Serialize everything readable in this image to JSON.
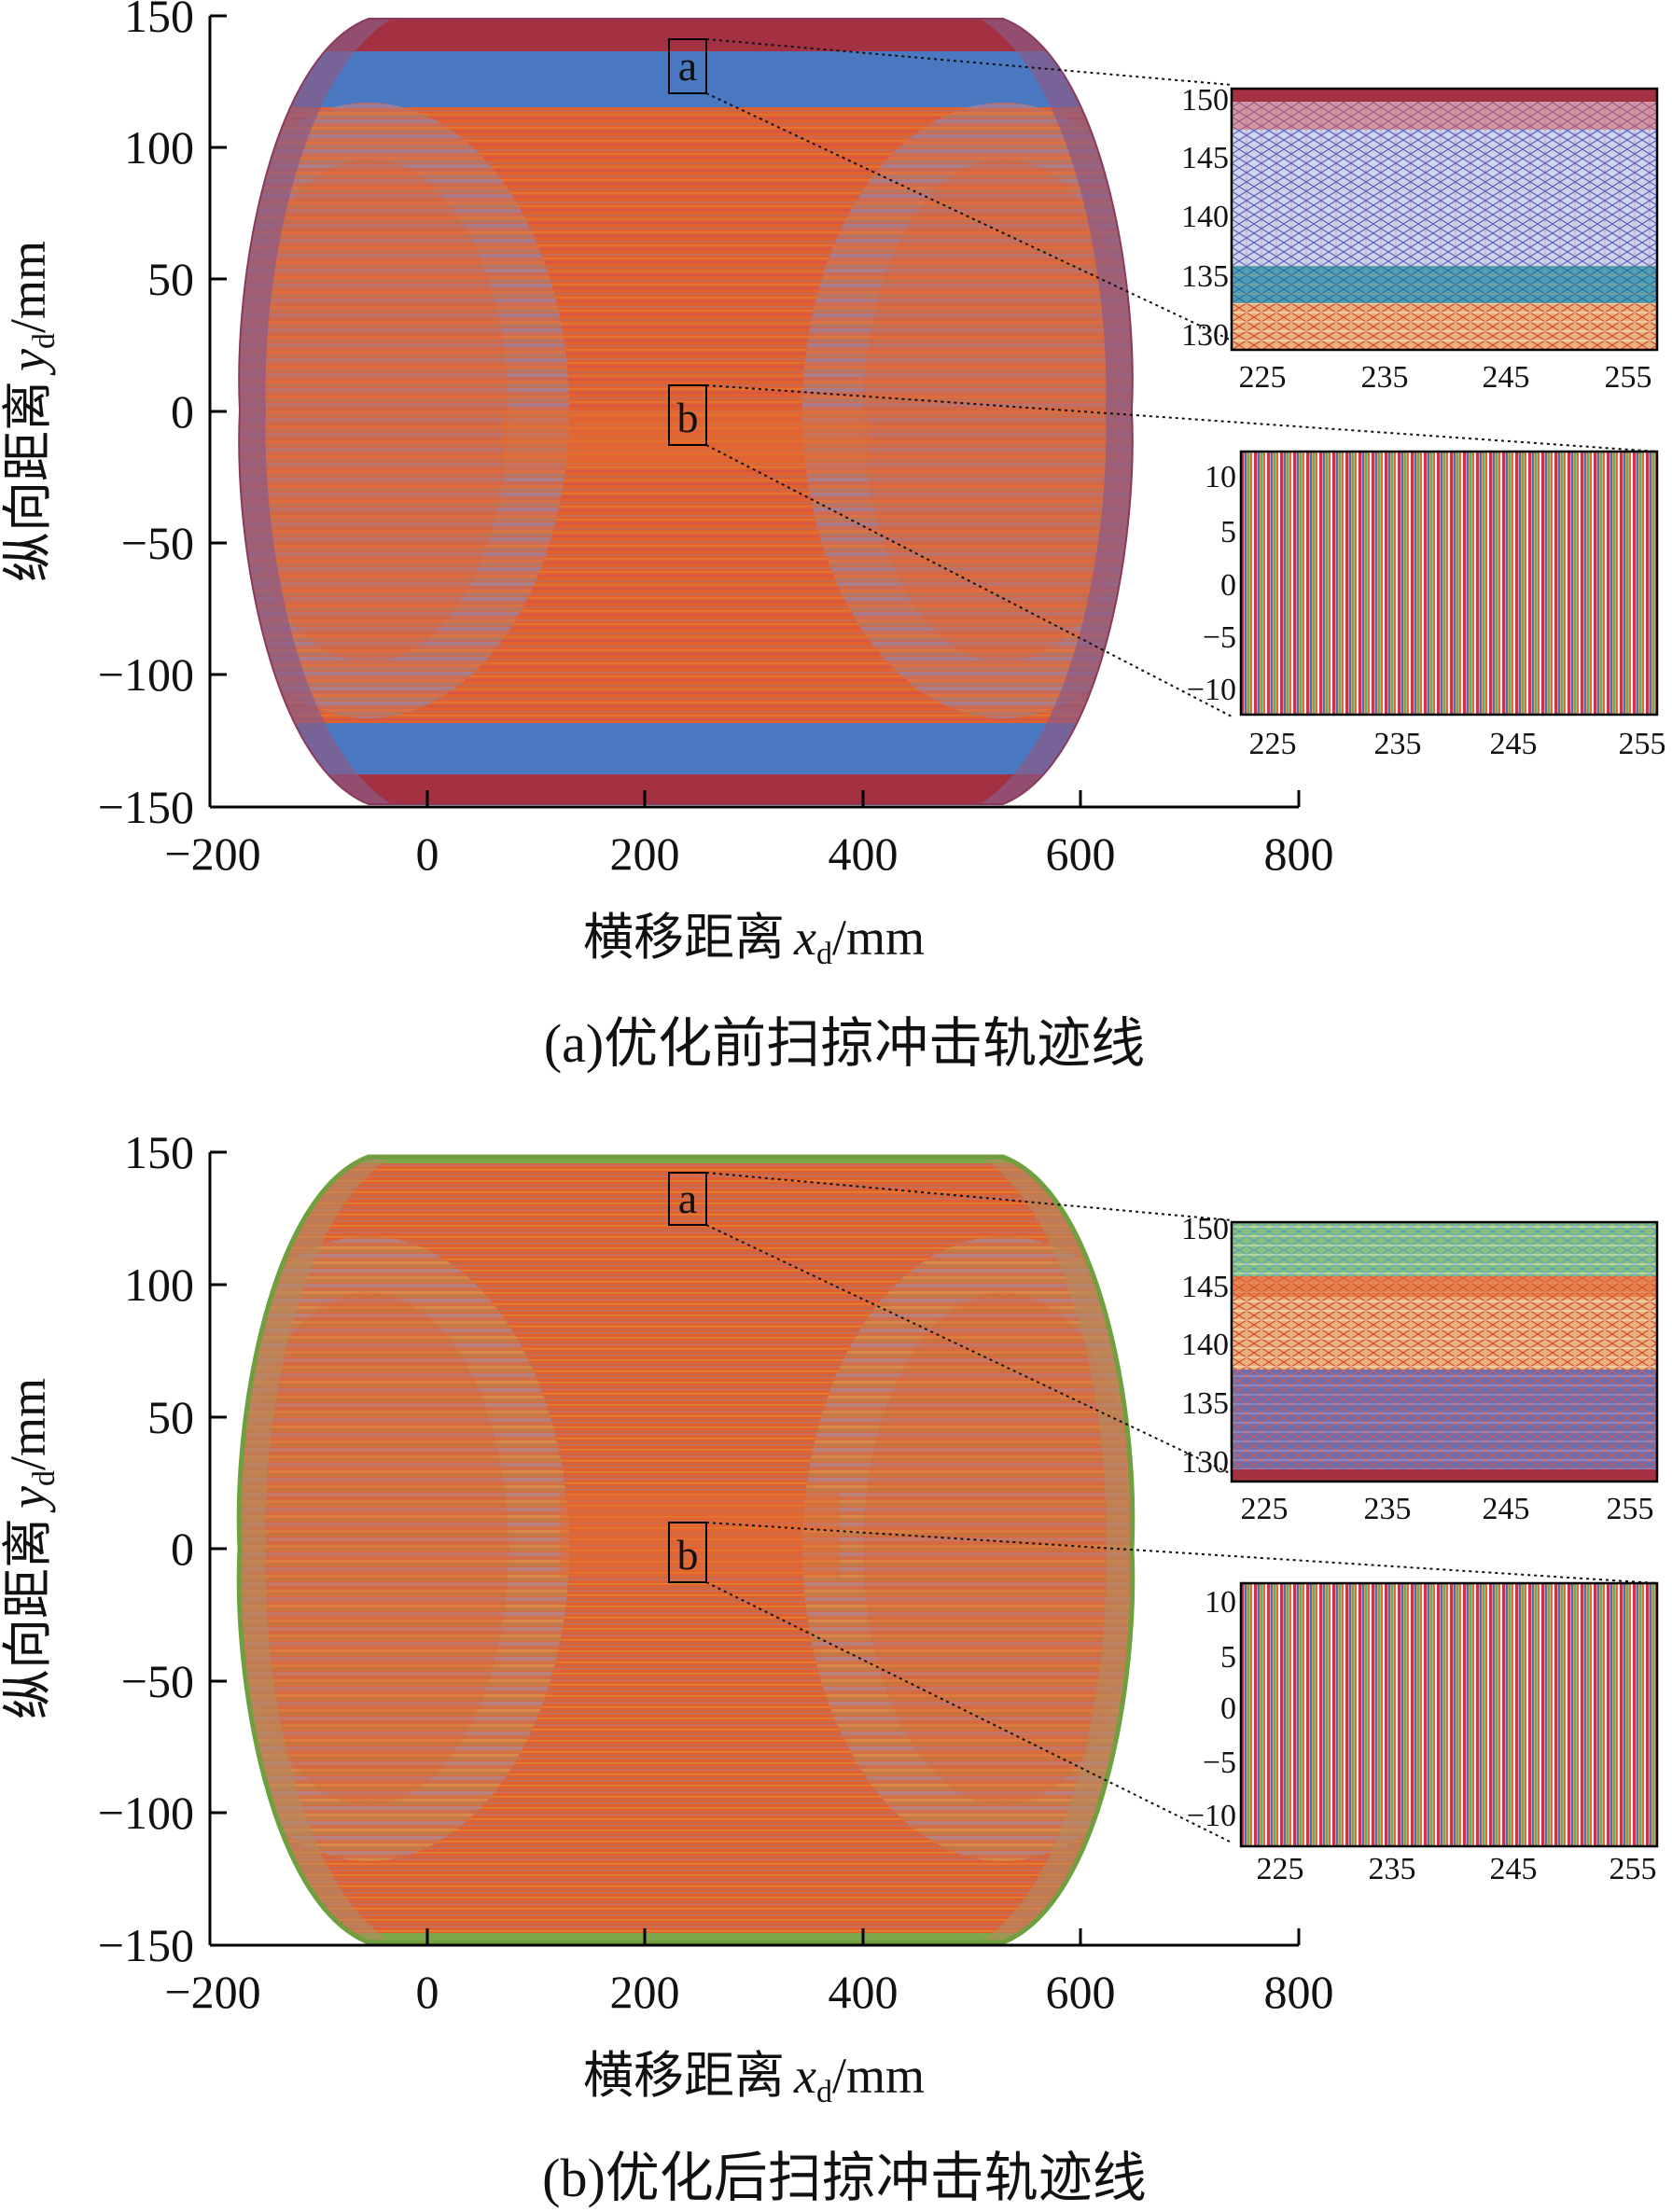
{
  "panels": [
    {
      "caption": "(a)优化前扫掠冲击轨迹线",
      "zoom_labels": [
        "a",
        "b"
      ],
      "xlabel_cn": "横移距离",
      "xlabel_var": "x",
      "xlabel_sub": "d",
      "xlabel_unit": "/mm",
      "ylabel_cn": "纵向距离",
      "ylabel_var": "y",
      "ylabel_sub": "d",
      "ylabel_unit": "/mm",
      "xticks": [
        "−200",
        "0",
        "200",
        "400",
        "600",
        "800"
      ],
      "yticks": [
        "150",
        "100",
        "50",
        "0",
        "−50",
        "−100",
        "−150"
      ],
      "inset_a": {
        "xticks": [
          "225",
          "235",
          "245",
          "255"
        ],
        "yticks": [
          "150",
          "145",
          "140",
          "135",
          "130"
        ]
      },
      "inset_b": {
        "xticks": [
          "225",
          "235",
          "245",
          "255"
        ],
        "yticks": [
          "10",
          "5",
          "0",
          "−5",
          "−10"
        ]
      }
    },
    {
      "caption": "(b)优化后扫掠冲击轨迹线",
      "zoom_labels": [
        "a",
        "b"
      ],
      "xlabel_cn": "横移距离",
      "xlabel_var": "x",
      "xlabel_sub": "d",
      "xlabel_unit": "/mm",
      "ylabel_cn": "纵向距离",
      "ylabel_var": "y",
      "ylabel_sub": "d",
      "ylabel_unit": "/mm",
      "xticks": [
        "−200",
        "0",
        "200",
        "400",
        "600",
        "800"
      ],
      "yticks": [
        "150",
        "100",
        "50",
        "0",
        "−50",
        "−100",
        "−150"
      ],
      "inset_a": {
        "xticks": [
          "225",
          "235",
          "245",
          "255"
        ],
        "yticks": [
          "150",
          "145",
          "140",
          "135",
          "130"
        ]
      },
      "inset_b": {
        "xticks": [
          "225",
          "235",
          "245",
          "255"
        ],
        "yticks": [
          "10",
          "5",
          "0",
          "−5",
          "−10"
        ]
      }
    }
  ],
  "chart_data": [
    {
      "type": "scatter",
      "title": "(a)优化前扫掠冲击轨迹线",
      "xlabel": "横移距离 x_d/mm",
      "ylabel": "纵向距离 y_d/mm",
      "xlim": [
        -200,
        800
      ],
      "ylim": [
        -150,
        150
      ],
      "description_series": [
        {
          "name": "outer band (|y| 135–150)",
          "color": "#a33142"
        },
        {
          "name": "band (|y| 115–135)",
          "color": "#4a79c2"
        },
        {
          "name": "core region",
          "color": "#e2602e"
        }
      ],
      "envelope": {
        "x_min": -150,
        "x_max": 650,
        "flat_x": [
          -20,
          505
        ]
      },
      "zoom_regions": [
        {
          "label": "a",
          "x": [
            225,
            255
          ],
          "y": [
            130,
            150
          ]
        },
        {
          "label": "b",
          "x": [
            225,
            255
          ],
          "y": [
            -10,
            10
          ]
        }
      ]
    },
    {
      "type": "scatter",
      "title": "(b)优化后扫掠冲击轨迹线",
      "xlabel": "横移距离 x_d/mm",
      "ylabel": "纵向距离 y_d/mm",
      "xlim": [
        -200,
        800
      ],
      "ylim": [
        -150,
        150
      ],
      "description_series": [
        {
          "name": "outer band (|y| 147–150)",
          "color": "#7aa84a"
        },
        {
          "name": "core region",
          "color": "#e2602e"
        }
      ],
      "envelope": {
        "x_min": -150,
        "x_max": 650,
        "flat_x": [
          -20,
          505
        ]
      },
      "zoom_regions": [
        {
          "label": "a",
          "x": [
            225,
            255
          ],
          "y": [
            130,
            150
          ]
        },
        {
          "label": "b",
          "x": [
            225,
            255
          ],
          "y": [
            -10,
            10
          ]
        }
      ]
    }
  ],
  "colors": {
    "a_outer": "#a33142",
    "a_blue": "#4a79c2",
    "core": "#e2602e",
    "b_outer": "#7aa84a",
    "gray": "#8f8cb0",
    "yellow": "#d9c53f",
    "teal": "#4fa8a5"
  }
}
